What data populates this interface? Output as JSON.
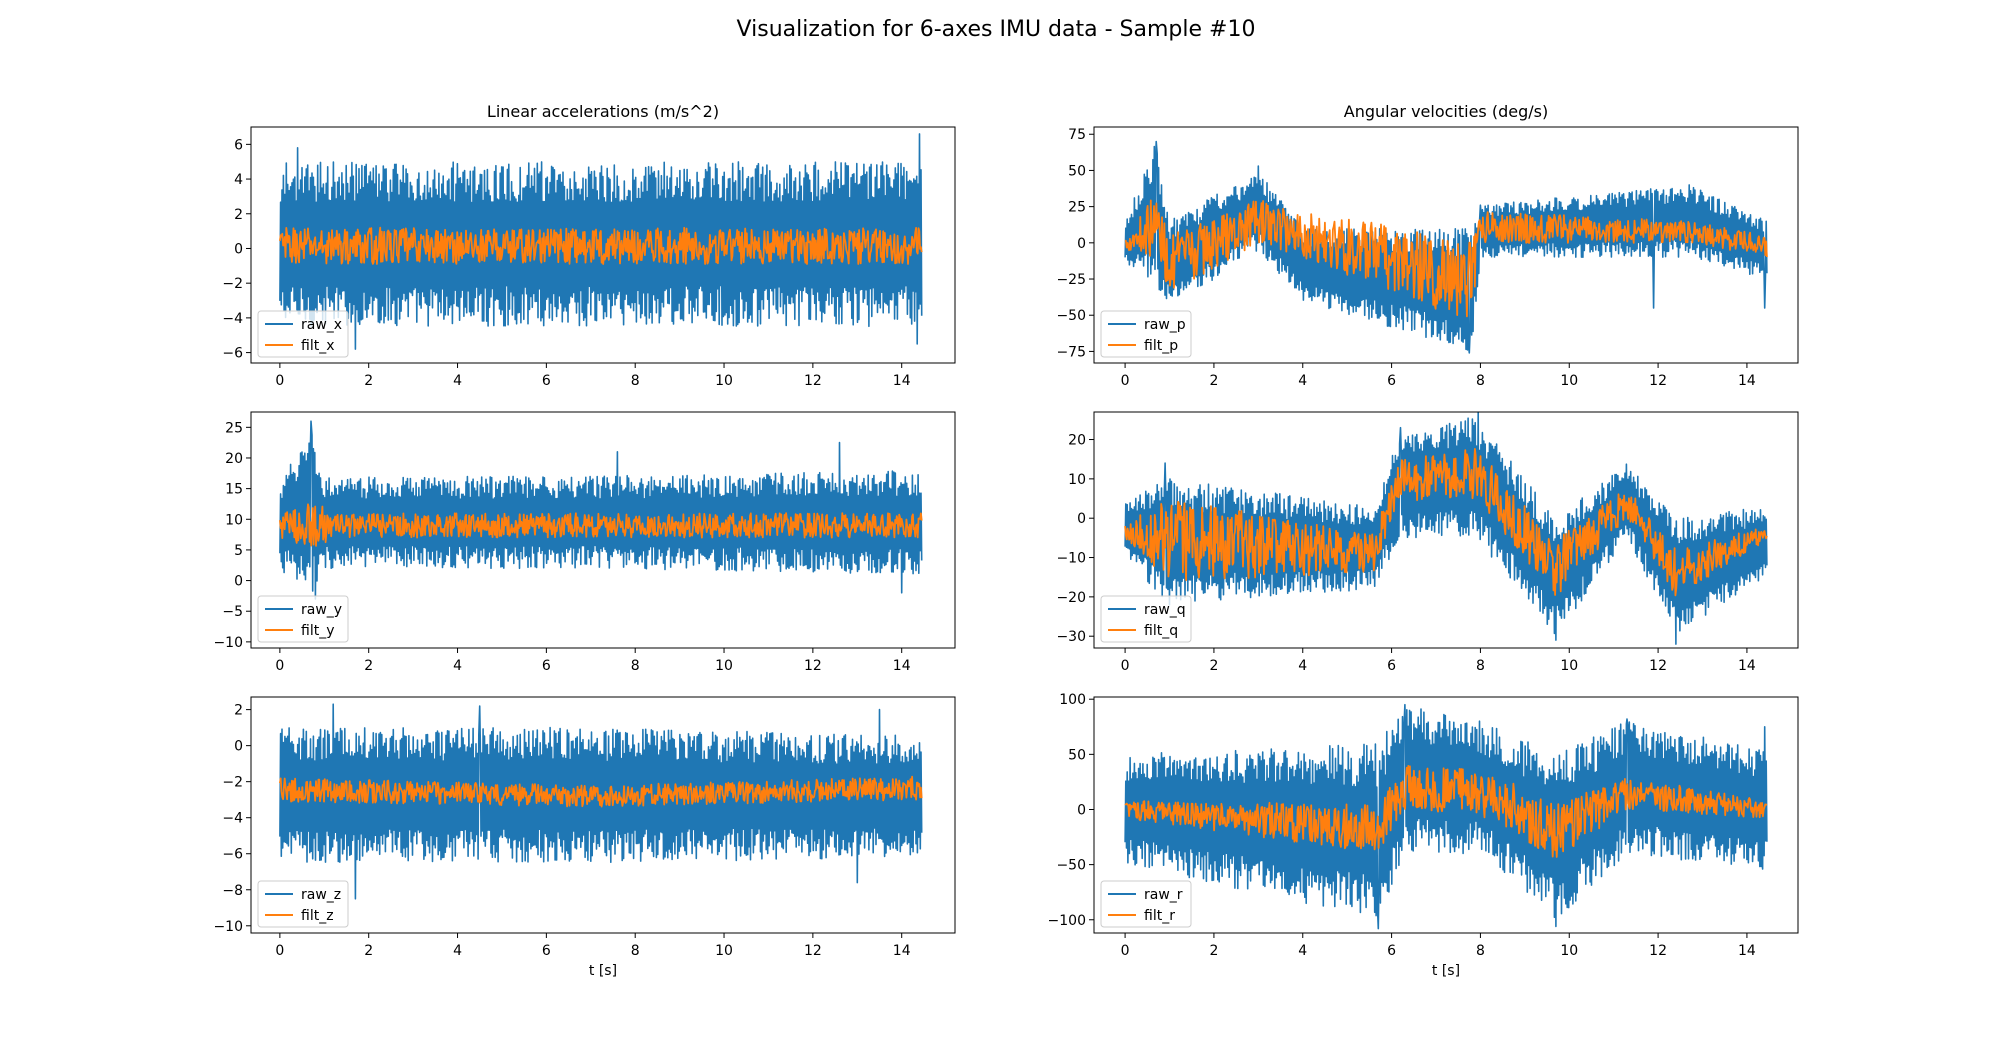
{
  "figure": {
    "title": "Visualization for 6-axes IMU data - Sample #10",
    "colors": {
      "raw": "#1f77b4",
      "filt": "#ff7f0e"
    }
  },
  "chart_data": [
    {
      "type": "line",
      "title": "Linear accelerations (m/s^2)",
      "xlabel": "",
      "ylabel": "",
      "xlim": [
        -0.65,
        15.2
      ],
      "ylim": [
        -6.6,
        7.0
      ],
      "xticks": [
        0,
        2,
        4,
        6,
        8,
        10,
        12,
        14
      ],
      "yticks": [
        -6,
        -4,
        -2,
        0,
        2,
        4,
        6
      ],
      "grid": false,
      "legend": "lower left",
      "series": [
        {
          "name": "raw_x",
          "color": "#1f77b4",
          "t_range": [
            0,
            14.45
          ],
          "envelope": [
            [
              0,
              -4.5,
              5.0
            ],
            [
              7,
              -4.5,
              5.0
            ],
            [
              14.45,
              -4.5,
              5.0
            ]
          ],
          "peaks": [
            [
              0.4,
              5.8
            ],
            [
              14.4,
              6.6
            ],
            [
              14.35,
              -5.5
            ],
            [
              1.7,
              -5.8
            ]
          ]
        },
        {
          "name": "filt_x",
          "color": "#ff7f0e",
          "t_range": [
            0,
            14.45
          ],
          "envelope": [
            [
              0,
              -0.9,
              1.2
            ],
            [
              7,
              -0.9,
              1.2
            ],
            [
              14.45,
              -0.9,
              1.2
            ]
          ],
          "peaks": []
        }
      ]
    },
    {
      "type": "line",
      "title": "Angular velocities (deg/s)",
      "xlabel": "",
      "ylabel": "",
      "xlim": [
        -0.7,
        15.15
      ],
      "ylim": [
        -83,
        80
      ],
      "xticks": [
        0,
        2,
        4,
        6,
        8,
        10,
        12,
        14
      ],
      "yticks": [
        -75,
        -50,
        -25,
        0,
        25,
        50,
        75
      ],
      "grid": false,
      "legend": "lower left",
      "series": [
        {
          "name": "raw_p",
          "color": "#1f77b4",
          "t_range": [
            0,
            14.45
          ],
          "envelope": [
            [
              0,
              -15,
              15
            ],
            [
              0.7,
              -30,
              70
            ],
            [
              1.0,
              -45,
              15
            ],
            [
              3.0,
              -5,
              50
            ],
            [
              4.0,
              -40,
              10
            ],
            [
              7.8,
              -75,
              10
            ],
            [
              8.0,
              -10,
              26
            ],
            [
              12.7,
              -10,
              40
            ],
            [
              14.45,
              -25,
              15
            ]
          ],
          "peaks": [
            [
              0.7,
              70
            ],
            [
              3.0,
              53
            ],
            [
              7.75,
              -76
            ],
            [
              8.0,
              26
            ],
            [
              11.9,
              -45
            ],
            [
              12.7,
              40
            ],
            [
              14.4,
              -45
            ]
          ]
        },
        {
          "name": "filt_p",
          "color": "#ff7f0e",
          "t_range": [
            0,
            14.45
          ],
          "envelope": [
            [
              0,
              -5,
              5
            ],
            [
              0.7,
              -10,
              35
            ],
            [
              1.0,
              -35,
              5
            ],
            [
              3.0,
              0,
              30
            ],
            [
              7.8,
              -55,
              0
            ],
            [
              8.0,
              0,
              22
            ],
            [
              12.7,
              0,
              15
            ],
            [
              14.45,
              -10,
              5
            ]
          ],
          "peaks": []
        }
      ]
    },
    {
      "type": "line",
      "title": "",
      "xlabel": "",
      "ylabel": "",
      "xlim": [
        -0.65,
        15.2
      ],
      "ylim": [
        -11,
        27.5
      ],
      "xticks": [
        0,
        2,
        4,
        6,
        8,
        10,
        12,
        14
      ],
      "yticks": [
        -10,
        -5,
        0,
        5,
        10,
        15,
        20,
        25
      ],
      "grid": false,
      "legend": "lower left",
      "series": [
        {
          "name": "raw_y",
          "color": "#1f77b4",
          "t_range": [
            0,
            14.45
          ],
          "envelope": [
            [
              0,
              2,
              16
            ],
            [
              0.7,
              -3,
              25
            ],
            [
              1.0,
              2,
              17
            ],
            [
              7,
              2,
              17
            ],
            [
              14.45,
              1,
              18
            ]
          ],
          "peaks": [
            [
              0.7,
              26
            ],
            [
              0.8,
              -3
            ],
            [
              7.6,
              21
            ],
            [
              12.6,
              22.5
            ],
            [
              14.0,
              -2
            ]
          ]
        },
        {
          "name": "filt_y",
          "color": "#ff7f0e",
          "t_range": [
            0,
            14.45
          ],
          "envelope": [
            [
              0,
              7,
              11
            ],
            [
              0.85,
              5,
              13
            ],
            [
              1.2,
              7,
              11
            ],
            [
              14.45,
              7,
              11
            ]
          ],
          "peaks": []
        }
      ]
    },
    {
      "type": "line",
      "title": "",
      "xlabel": "",
      "ylabel": "",
      "xlim": [
        -0.7,
        15.15
      ],
      "ylim": [
        -33,
        27
      ],
      "xticks": [
        0,
        2,
        4,
        6,
        8,
        10,
        12,
        14
      ],
      "yticks": [
        -30,
        -20,
        -10,
        0,
        10,
        20
      ],
      "grid": false,
      "legend": "lower left",
      "series": [
        {
          "name": "raw_q",
          "color": "#1f77b4",
          "t_range": [
            0,
            14.45
          ],
          "envelope": [
            [
              0,
              -10,
              5
            ],
            [
              1.0,
              -22,
              10
            ],
            [
              5.6,
              -18,
              3
            ],
            [
              6.2,
              -5,
              22
            ],
            [
              7.9,
              -5,
              26
            ],
            [
              9.7,
              -30,
              0
            ],
            [
              11.3,
              -5,
              14
            ],
            [
              12.4,
              -30,
              0
            ],
            [
              14.45,
              -15,
              3
            ]
          ],
          "peaks": [
            [
              0.9,
              14
            ],
            [
              1.0,
              -22
            ],
            [
              6.2,
              23
            ],
            [
              7.95,
              27
            ],
            [
              9.7,
              -31
            ],
            [
              12.4,
              -32
            ]
          ]
        },
        {
          "name": "filt_q",
          "color": "#ff7f0e",
          "t_range": [
            0,
            14.45
          ],
          "envelope": [
            [
              0,
              -5,
              -1
            ],
            [
              1.0,
              -16,
              5
            ],
            [
              5.6,
              -14,
              -4
            ],
            [
              6.2,
              4,
              15
            ],
            [
              7.9,
              5,
              18
            ],
            [
              9.7,
              -20,
              -5
            ],
            [
              11.3,
              0,
              8
            ],
            [
              12.4,
              -20,
              -8
            ],
            [
              14.45,
              -6,
              -2
            ]
          ],
          "peaks": []
        }
      ]
    },
    {
      "type": "line",
      "title": "",
      "xlabel": "t [s]",
      "ylabel": "",
      "xlim": [
        -0.65,
        15.2
      ],
      "ylim": [
        -10.4,
        2.7
      ],
      "xticks": [
        0,
        2,
        4,
        6,
        8,
        10,
        12,
        14
      ],
      "yticks": [
        -10,
        -8,
        -6,
        -4,
        -2,
        0,
        2
      ],
      "grid": false,
      "legend": "lower left",
      "series": [
        {
          "name": "raw_z",
          "color": "#1f77b4",
          "t_range": [
            0,
            14.45
          ],
          "envelope": [
            [
              0,
              -6.5,
              1.0
            ],
            [
              7,
              -6.5,
              1.0
            ],
            [
              14.45,
              -6.2,
              0.6
            ]
          ],
          "peaks": [
            [
              1.2,
              2.3
            ],
            [
              1.7,
              -8.5
            ],
            [
              4.5,
              2.2
            ],
            [
              13.5,
              2.0
            ],
            [
              13.0,
              -7.6
            ]
          ]
        },
        {
          "name": "filt_z",
          "color": "#ff7f0e",
          "t_range": [
            0,
            14.45
          ],
          "envelope": [
            [
              0,
              -3.1,
              -1.8
            ],
            [
              7,
              -3.4,
              -2.2
            ],
            [
              14.45,
              -3.0,
              -1.7
            ]
          ],
          "peaks": []
        }
      ]
    },
    {
      "type": "line",
      "title": "",
      "xlabel": "t [s]",
      "ylabel": "",
      "xlim": [
        -0.7,
        15.15
      ],
      "ylim": [
        -112,
        102
      ],
      "xticks": [
        0,
        2,
        4,
        6,
        8,
        10,
        12,
        14
      ],
      "yticks": [
        -100,
        -50,
        0,
        50,
        100
      ],
      "grid": false,
      "legend": "lower left",
      "series": [
        {
          "name": "raw_r",
          "color": "#1f77b4",
          "t_range": [
            0,
            14.45
          ],
          "envelope": [
            [
              0,
              -50,
              50
            ],
            [
              5.7,
              -100,
              60
            ],
            [
              6.3,
              -40,
              95
            ],
            [
              8.0,
              -40,
              80
            ],
            [
              9.7,
              -100,
              50
            ],
            [
              11.3,
              -40,
              80
            ],
            [
              14.45,
              -55,
              55
            ]
          ],
          "peaks": [
            [
              5.7,
              -108
            ],
            [
              6.3,
              95
            ],
            [
              9.7,
              -106
            ],
            [
              11.3,
              82
            ],
            [
              14.4,
              75
            ]
          ]
        },
        {
          "name": "filt_r",
          "color": "#ff7f0e",
          "t_range": [
            0,
            14.45
          ],
          "envelope": [
            [
              0,
              -8,
              8
            ],
            [
              5.7,
              -40,
              5
            ],
            [
              6.3,
              0,
              40
            ],
            [
              8.0,
              -5,
              38
            ],
            [
              9.7,
              -45,
              5
            ],
            [
              11.3,
              0,
              30
            ],
            [
              14.45,
              -8,
              8
            ]
          ],
          "peaks": []
        }
      ]
    }
  ]
}
